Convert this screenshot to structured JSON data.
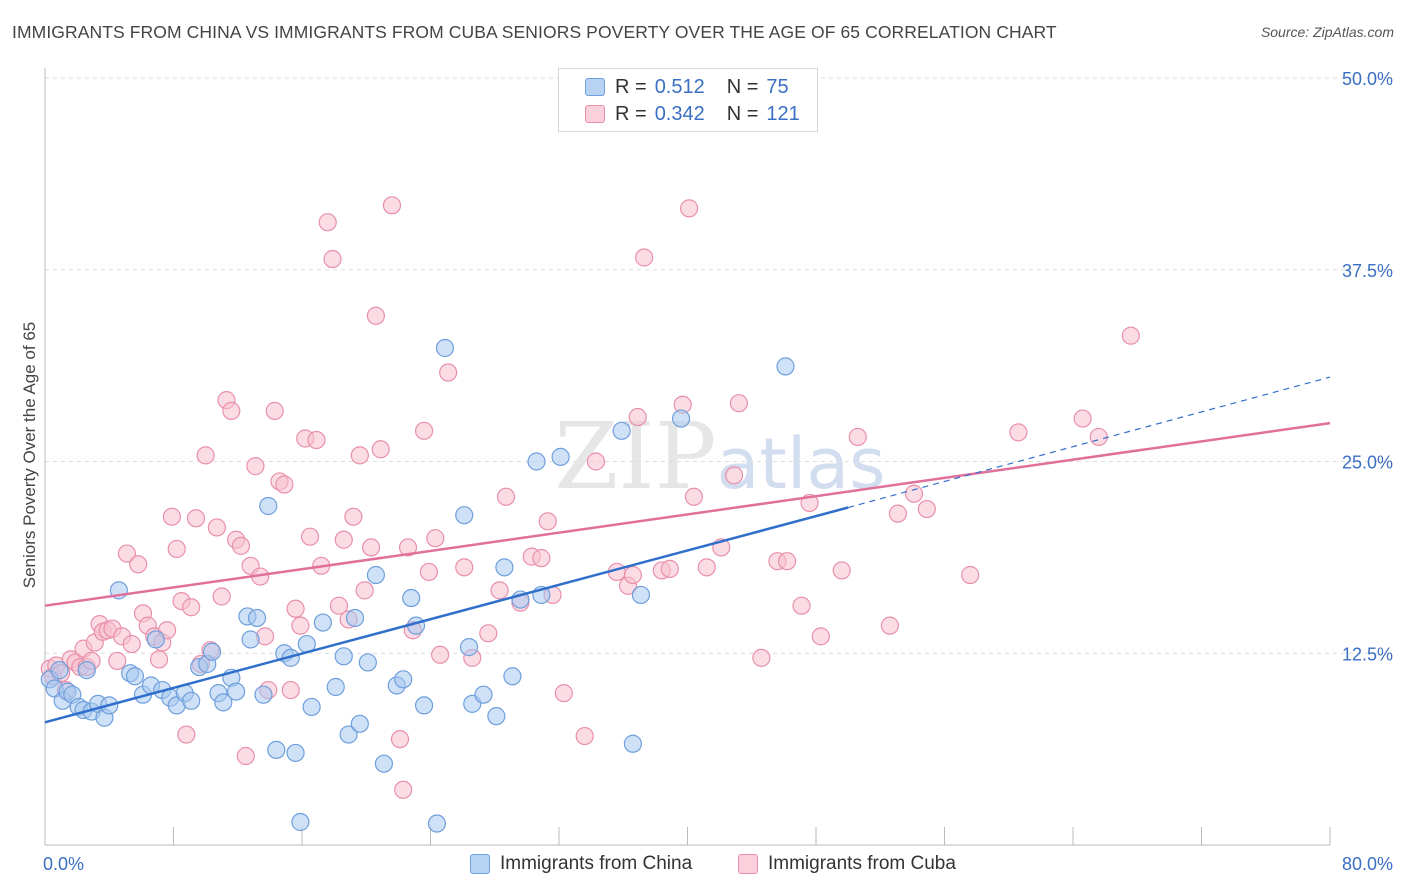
{
  "title": "IMMIGRANTS FROM CHINA VS IMMIGRANTS FROM CUBA SENIORS POVERTY OVER THE AGE OF 65 CORRELATION CHART",
  "source": "Source: ZipAtlas.com",
  "legend": {
    "china": {
      "r_label": "R =",
      "r_value": "0.512",
      "n_label": "N =",
      "n_value": "75"
    },
    "cuba": {
      "r_label": "R =",
      "r_value": "0.342",
      "n_label": "N =",
      "n_value": "121"
    }
  },
  "colors": {
    "china_fill": "#a8c8f0",
    "china_stroke": "#6f9fdc",
    "china_line": "#2f6fcb",
    "cuba_fill": "#f8c0d0",
    "cuba_stroke": "#e890aa",
    "cuba_line": "#e0709a",
    "axis_text": "#3a6fc4",
    "grid": "#dddddd"
  },
  "chart_data": {
    "type": "scatter",
    "title": "IMMIGRANTS FROM CHINA VS IMMIGRANTS FROM CUBA SENIORS POVERTY OVER THE AGE OF 65 CORRELATION CHART",
    "xlabel": "",
    "ylabel": "Seniors Poverty Over the Age of 65",
    "xlim": [
      0,
      80
    ],
    "ylim": [
      0,
      50
    ],
    "x_tick_labels": [
      "0.0%",
      "80.0%"
    ],
    "y_ticks": [
      12.5,
      25.0,
      37.5,
      50.0
    ],
    "y_tick_labels": [
      "12.5%",
      "25.0%",
      "37.5%",
      "50.0%"
    ],
    "grid": "horizontal dashed",
    "legend_position": "top-center",
    "watermark": "ZIPatlas",
    "series": [
      {
        "name": "Immigrants from China",
        "r": 0.512,
        "n": 75,
        "trend": {
          "x0": 0,
          "y0": 8.0,
          "x1": 50,
          "y1": 22.0,
          "dashed_to_x": 80,
          "dashed_to_y": 30.5
        },
        "points": [
          [
            0.3,
            10.8
          ],
          [
            0.6,
            10.2
          ],
          [
            0.9,
            11.4
          ],
          [
            1.1,
            9.4
          ],
          [
            1.4,
            10.0
          ],
          [
            1.7,
            9.8
          ],
          [
            2.1,
            9.0
          ],
          [
            2.4,
            8.8
          ],
          [
            2.6,
            11.4
          ],
          [
            2.9,
            8.7
          ],
          [
            3.3,
            9.2
          ],
          [
            3.7,
            8.3
          ],
          [
            4.0,
            9.1
          ],
          [
            4.6,
            16.6
          ],
          [
            5.3,
            11.2
          ],
          [
            5.6,
            11.0
          ],
          [
            6.1,
            9.8
          ],
          [
            6.6,
            10.4
          ],
          [
            6.9,
            13.4
          ],
          [
            7.3,
            10.1
          ],
          [
            7.8,
            9.6
          ],
          [
            8.2,
            9.1
          ],
          [
            8.7,
            9.9
          ],
          [
            9.1,
            9.4
          ],
          [
            9.6,
            11.6
          ],
          [
            10.1,
            11.8
          ],
          [
            10.4,
            12.6
          ],
          [
            10.8,
            9.9
          ],
          [
            11.1,
            9.3
          ],
          [
            11.6,
            10.9
          ],
          [
            11.9,
            10.0
          ],
          [
            12.6,
            14.9
          ],
          [
            12.8,
            13.4
          ],
          [
            13.2,
            14.8
          ],
          [
            13.6,
            9.8
          ],
          [
            13.9,
            22.1
          ],
          [
            14.4,
            6.2
          ],
          [
            14.9,
            12.5
          ],
          [
            15.3,
            12.2
          ],
          [
            15.6,
            6.0
          ],
          [
            15.9,
            1.5
          ],
          [
            16.3,
            13.1
          ],
          [
            16.6,
            9.0
          ],
          [
            17.3,
            14.5
          ],
          [
            18.1,
            10.3
          ],
          [
            18.6,
            12.3
          ],
          [
            18.9,
            7.2
          ],
          [
            19.3,
            14.8
          ],
          [
            19.6,
            7.9
          ],
          [
            20.1,
            11.9
          ],
          [
            20.6,
            17.6
          ],
          [
            21.1,
            5.3
          ],
          [
            21.9,
            10.4
          ],
          [
            22.3,
            10.8
          ],
          [
            22.8,
            16.1
          ],
          [
            23.1,
            14.3
          ],
          [
            23.6,
            9.1
          ],
          [
            24.4,
            1.4
          ],
          [
            24.9,
            32.4
          ],
          [
            26.1,
            21.5
          ],
          [
            26.4,
            12.9
          ],
          [
            26.6,
            9.2
          ],
          [
            27.3,
            9.8
          ],
          [
            28.1,
            8.4
          ],
          [
            28.6,
            18.1
          ],
          [
            29.1,
            11.0
          ],
          [
            29.6,
            16.0
          ],
          [
            30.6,
            25.0
          ],
          [
            30.9,
            16.3
          ],
          [
            32.1,
            25.3
          ],
          [
            35.9,
            27.0
          ],
          [
            36.6,
            6.6
          ],
          [
            37.1,
            16.3
          ],
          [
            39.6,
            27.8
          ],
          [
            46.1,
            31.2
          ]
        ]
      },
      {
        "name": "Immigrants from Cuba",
        "r": 0.342,
        "n": 121,
        "trend": {
          "x0": 0,
          "y0": 15.6,
          "x1": 80,
          "y1": 27.5
        },
        "points": [
          [
            0.3,
            11.5
          ],
          [
            0.5,
            11.0
          ],
          [
            0.7,
            11.7
          ],
          [
            1.0,
            11.2
          ],
          [
            1.3,
            10.1
          ],
          [
            1.6,
            12.1
          ],
          [
            1.9,
            11.9
          ],
          [
            2.2,
            11.6
          ],
          [
            2.4,
            12.8
          ],
          [
            2.6,
            11.6
          ],
          [
            2.9,
            12.0
          ],
          [
            3.1,
            13.2
          ],
          [
            3.4,
            14.4
          ],
          [
            3.6,
            13.9
          ],
          [
            3.9,
            14.0
          ],
          [
            4.2,
            14.1
          ],
          [
            4.5,
            12.0
          ],
          [
            4.8,
            13.6
          ],
          [
            5.1,
            19.0
          ],
          [
            5.4,
            13.1
          ],
          [
            5.8,
            18.3
          ],
          [
            6.1,
            15.1
          ],
          [
            6.4,
            14.3
          ],
          [
            6.8,
            13.6
          ],
          [
            7.1,
            12.1
          ],
          [
            7.3,
            13.2
          ],
          [
            7.6,
            14.0
          ],
          [
            7.9,
            21.4
          ],
          [
            8.2,
            19.3
          ],
          [
            8.5,
            15.9
          ],
          [
            8.8,
            7.2
          ],
          [
            9.1,
            15.5
          ],
          [
            9.4,
            21.3
          ],
          [
            9.7,
            11.8
          ],
          [
            10.0,
            25.4
          ],
          [
            10.3,
            12.7
          ],
          [
            10.7,
            20.7
          ],
          [
            11.0,
            16.2
          ],
          [
            11.3,
            29.0
          ],
          [
            11.6,
            28.3
          ],
          [
            11.9,
            19.9
          ],
          [
            12.2,
            19.5
          ],
          [
            12.5,
            5.8
          ],
          [
            12.8,
            18.2
          ],
          [
            13.1,
            24.7
          ],
          [
            13.4,
            17.5
          ],
          [
            13.7,
            13.6
          ],
          [
            13.9,
            10.1
          ],
          [
            14.3,
            28.3
          ],
          [
            14.6,
            23.7
          ],
          [
            14.9,
            23.5
          ],
          [
            15.3,
            10.1
          ],
          [
            15.6,
            15.4
          ],
          [
            15.9,
            14.3
          ],
          [
            16.2,
            26.5
          ],
          [
            16.5,
            20.1
          ],
          [
            16.9,
            26.4
          ],
          [
            17.2,
            18.2
          ],
          [
            17.6,
            40.6
          ],
          [
            17.9,
            38.2
          ],
          [
            18.3,
            15.6
          ],
          [
            18.6,
            19.9
          ],
          [
            18.9,
            14.7
          ],
          [
            19.2,
            21.4
          ],
          [
            19.6,
            25.4
          ],
          [
            19.9,
            16.6
          ],
          [
            20.3,
            19.4
          ],
          [
            20.6,
            34.5
          ],
          [
            20.9,
            25.8
          ],
          [
            21.6,
            41.7
          ],
          [
            22.1,
            6.9
          ],
          [
            22.3,
            3.6
          ],
          [
            22.6,
            19.4
          ],
          [
            22.9,
            14.0
          ],
          [
            23.6,
            27.0
          ],
          [
            23.9,
            17.8
          ],
          [
            24.3,
            20.0
          ],
          [
            24.6,
            12.4
          ],
          [
            25.1,
            30.8
          ],
          [
            26.1,
            18.1
          ],
          [
            26.6,
            12.2
          ],
          [
            27.6,
            13.8
          ],
          [
            28.3,
            16.6
          ],
          [
            28.7,
            22.7
          ],
          [
            29.6,
            15.8
          ],
          [
            30.3,
            18.8
          ],
          [
            30.9,
            18.7
          ],
          [
            31.3,
            21.1
          ],
          [
            31.6,
            16.3
          ],
          [
            32.3,
            9.9
          ],
          [
            33.6,
            7.1
          ],
          [
            34.3,
            25.0
          ],
          [
            35.6,
            17.8
          ],
          [
            36.3,
            16.9
          ],
          [
            36.6,
            17.6
          ],
          [
            36.9,
            27.9
          ],
          [
            37.3,
            38.3
          ],
          [
            38.4,
            17.9
          ],
          [
            38.9,
            18.0
          ],
          [
            39.7,
            28.7
          ],
          [
            40.1,
            41.5
          ],
          [
            40.4,
            22.7
          ],
          [
            41.2,
            18.1
          ],
          [
            42.1,
            19.4
          ],
          [
            42.9,
            24.1
          ],
          [
            43.2,
            28.8
          ],
          [
            44.6,
            12.2
          ],
          [
            45.6,
            18.5
          ],
          [
            46.2,
            18.5
          ],
          [
            47.1,
            15.6
          ],
          [
            47.6,
            22.3
          ],
          [
            48.3,
            13.6
          ],
          [
            49.6,
            17.9
          ],
          [
            50.6,
            26.6
          ],
          [
            52.6,
            14.3
          ],
          [
            53.1,
            21.6
          ],
          [
            54.1,
            22.9
          ],
          [
            54.9,
            21.9
          ],
          [
            57.6,
            17.6
          ],
          [
            60.6,
            26.9
          ],
          [
            64.6,
            27.8
          ],
          [
            65.6,
            26.6
          ],
          [
            67.6,
            33.2
          ]
        ]
      }
    ]
  },
  "bottom_legend": {
    "china": "Immigrants from China",
    "cuba": "Immigrants from Cuba"
  }
}
